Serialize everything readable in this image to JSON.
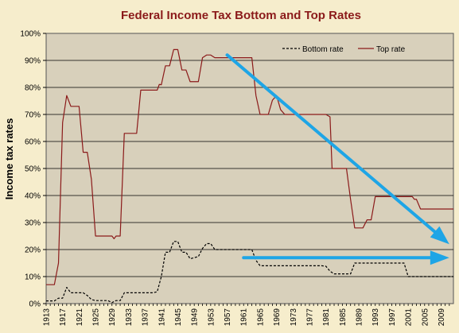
{
  "chart_data": {
    "type": "line",
    "title": "Federal Income  Tax Bottom and Top Rates",
    "xlabel": "",
    "ylabel": "Income tax rates",
    "xlim": [
      1913,
      2012
    ],
    "ylim": [
      0,
      100
    ],
    "y_ticks": [
      "0%",
      "10%",
      "20%",
      "30%",
      "40%",
      "50%",
      "60%",
      "70%",
      "80%",
      "90%",
      "100%"
    ],
    "x_ticks": [
      "1913",
      "1917",
      "1921",
      "1925",
      "1929",
      "1933",
      "1937",
      "1941",
      "1945",
      "1949",
      "1953",
      "1957",
      "1961",
      "1965",
      "1969",
      "1973",
      "1977",
      "1981",
      "1985",
      "1989",
      "1993",
      "1997",
      "2001",
      "2005",
      "2009"
    ],
    "grid": "horizontal",
    "legend_position": "top-right",
    "series": [
      {
        "name": "Bottom rate",
        "style": "dashed",
        "color": "#000000",
        "points": [
          [
            1913,
            1
          ],
          [
            1915,
            1
          ],
          [
            1916,
            2
          ],
          [
            1917,
            2
          ],
          [
            1918,
            6
          ],
          [
            1919,
            4
          ],
          [
            1921,
            4
          ],
          [
            1922,
            4
          ],
          [
            1923,
            3
          ],
          [
            1924,
            1.5
          ],
          [
            1925,
            1.125
          ],
          [
            1928,
            1.125
          ],
          [
            1929,
            0.375
          ],
          [
            1930,
            1.125
          ],
          [
            1931,
            1.125
          ],
          [
            1932,
            4
          ],
          [
            1935,
            4
          ],
          [
            1936,
            4
          ],
          [
            1939,
            4
          ],
          [
            1940,
            4.4
          ],
          [
            1941,
            10
          ],
          [
            1942,
            19
          ],
          [
            1943,
            19
          ],
          [
            1944,
            23
          ],
          [
            1945,
            23
          ],
          [
            1946,
            19
          ],
          [
            1947,
            19
          ],
          [
            1948,
            16.6
          ],
          [
            1950,
            17.4
          ],
          [
            1951,
            20.4
          ],
          [
            1952,
            22.2
          ],
          [
            1953,
            22.2
          ],
          [
            1954,
            20
          ],
          [
            1963,
            20
          ],
          [
            1964,
            16
          ],
          [
            1965,
            14
          ],
          [
            1980,
            14
          ],
          [
            1981,
            13.825
          ],
          [
            1982,
            12
          ],
          [
            1983,
            11
          ],
          [
            1987,
            11
          ],
          [
            1988,
            15
          ],
          [
            2000,
            15
          ],
          [
            2001,
            10
          ],
          [
            2012,
            10
          ]
        ]
      },
      {
        "name": "Top rate",
        "style": "solid",
        "color": "#8b1a1a",
        "points": [
          [
            1913,
            7
          ],
          [
            1915,
            7
          ],
          [
            1916,
            15
          ],
          [
            1917,
            67
          ],
          [
            1918,
            77
          ],
          [
            1919,
            73
          ],
          [
            1921,
            73
          ],
          [
            1922,
            56
          ],
          [
            1923,
            56
          ],
          [
            1924,
            46
          ],
          [
            1925,
            25
          ],
          [
            1929,
            25
          ],
          [
            1929.5,
            24
          ],
          [
            1930,
            25
          ],
          [
            1931,
            25
          ],
          [
            1932,
            63
          ],
          [
            1935,
            63
          ],
          [
            1936,
            79
          ],
          [
            1940,
            79
          ],
          [
            1940.5,
            81.1
          ],
          [
            1941,
            81
          ],
          [
            1942,
            88
          ],
          [
            1943,
            88
          ],
          [
            1944,
            94
          ],
          [
            1945,
            94
          ],
          [
            1946,
            86.45
          ],
          [
            1947,
            86.45
          ],
          [
            1948,
            82.13
          ],
          [
            1950,
            82.13
          ],
          [
            1951,
            91
          ],
          [
            1952,
            92
          ],
          [
            1953,
            92
          ],
          [
            1954,
            91
          ],
          [
            1963,
            91
          ],
          [
            1964,
            77
          ],
          [
            1965,
            70
          ],
          [
            1967,
            70
          ],
          [
            1968,
            75.25
          ],
          [
            1969,
            77
          ],
          [
            1970,
            71.75
          ],
          [
            1971,
            70
          ],
          [
            1981,
            70
          ],
          [
            1982,
            69.13
          ],
          [
            1982.5,
            50
          ],
          [
            1986,
            50
          ],
          [
            1987,
            38.5
          ],
          [
            1988,
            28
          ],
          [
            1990,
            28
          ],
          [
            1991,
            31
          ],
          [
            1992,
            31
          ],
          [
            1993,
            39.6
          ],
          [
            2002,
            39.6
          ],
          [
            2002.5,
            38.6
          ],
          [
            2003,
            38.6
          ],
          [
            2004,
            35
          ],
          [
            2012,
            35
          ]
        ]
      }
    ],
    "annotations": [
      {
        "type": "arrow",
        "color": "#1ea5e6",
        "from": [
          1957,
          92
        ],
        "to": [
          2011,
          22
        ]
      },
      {
        "type": "arrow",
        "color": "#1ea5e6",
        "from": [
          1961,
          17
        ],
        "to": [
          2011,
          17
        ]
      }
    ],
    "colors": {
      "plot_background": "#d8d0bb",
      "page_background": "#f6edcc",
      "grid": "#000000",
      "title": "#8b1a1a",
      "arrow": "#1ea5e6"
    }
  }
}
